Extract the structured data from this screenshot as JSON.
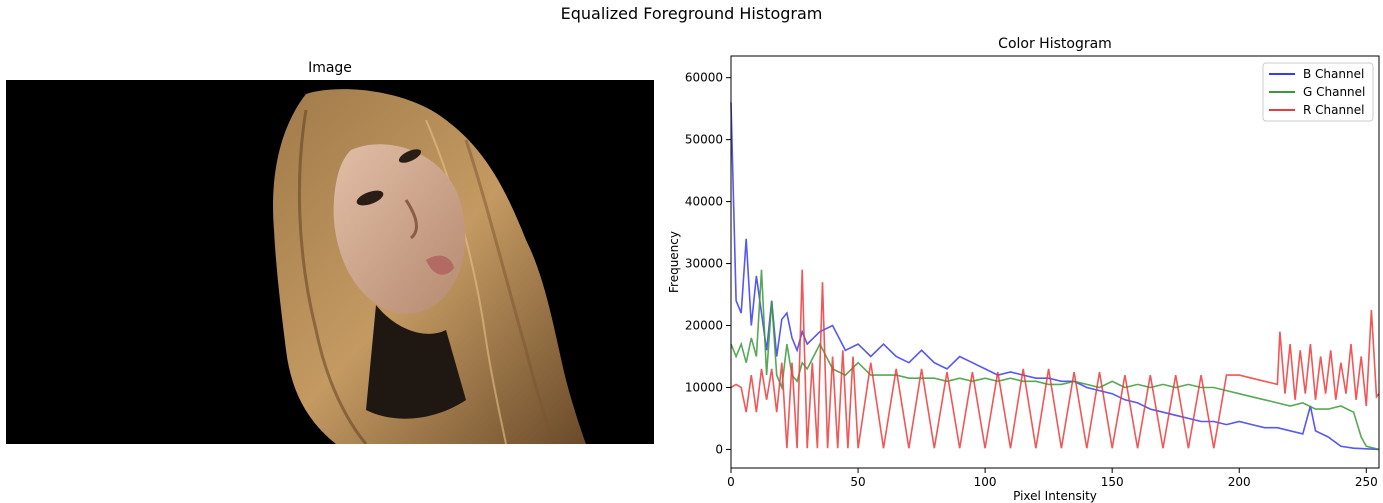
{
  "figure": {
    "suptitle": "Equalized Foreground Histogram"
  },
  "image_panel": {
    "title": "Image",
    "description_icon": "portrait-photo"
  },
  "chart_data": {
    "type": "line",
    "title": "Color Histogram",
    "xlabel": "Pixel Intensity",
    "ylabel": "Frequency",
    "xlim": [
      0,
      255
    ],
    "ylim": [
      -3000,
      63500
    ],
    "xticks": [
      0,
      50,
      100,
      150,
      200,
      250
    ],
    "yticks": [
      0,
      10000,
      20000,
      30000,
      40000,
      50000,
      60000
    ],
    "legend_position": "top-right",
    "grid": false,
    "series": [
      {
        "name": "B Channel",
        "color": "#3a3aee",
        "x": [
          0,
          2,
          4,
          6,
          8,
          10,
          12,
          14,
          16,
          18,
          20,
          22,
          24,
          26,
          28,
          30,
          35,
          40,
          45,
          50,
          55,
          60,
          65,
          70,
          75,
          80,
          85,
          90,
          95,
          100,
          105,
          110,
          115,
          120,
          125,
          130,
          135,
          140,
          145,
          150,
          155,
          160,
          165,
          170,
          175,
          180,
          185,
          190,
          195,
          200,
          205,
          210,
          215,
          220,
          225,
          228,
          230,
          235,
          240,
          245,
          250,
          255
        ],
        "y": [
          56000,
          24000,
          22000,
          34000,
          20000,
          28000,
          22000,
          16000,
          24000,
          15000,
          21000,
          22000,
          18000,
          16000,
          19000,
          17000,
          19000,
          20000,
          16000,
          17000,
          15000,
          17000,
          15000,
          14000,
          16000,
          14000,
          13000,
          15000,
          14000,
          13000,
          12000,
          12500,
          12000,
          11500,
          11500,
          11000,
          11000,
          10000,
          9500,
          9000,
          8000,
          7500,
          6500,
          6000,
          5500,
          5000,
          4500,
          4500,
          4000,
          4500,
          4000,
          3500,
          3500,
          3000,
          2500,
          7000,
          3000,
          2000,
          500,
          200,
          100,
          0
        ]
      },
      {
        "name": "G Channel",
        "color": "#3a9a3a",
        "x": [
          0,
          2,
          4,
          6,
          8,
          10,
          12,
          14,
          16,
          18,
          20,
          22,
          24,
          26,
          28,
          30,
          35,
          40,
          45,
          50,
          55,
          60,
          65,
          70,
          75,
          80,
          85,
          90,
          95,
          100,
          105,
          110,
          115,
          120,
          125,
          130,
          135,
          140,
          145,
          150,
          155,
          160,
          165,
          170,
          175,
          180,
          185,
          190,
          195,
          200,
          205,
          210,
          215,
          220,
          225,
          230,
          235,
          240,
          245,
          248,
          250,
          255
        ],
        "y": [
          17000,
          15000,
          17000,
          14000,
          18000,
          15000,
          29000,
          12000,
          24000,
          12000,
          10000,
          17000,
          12000,
          11000,
          14000,
          13000,
          17000,
          13000,
          12000,
          14000,
          12000,
          12000,
          12000,
          11500,
          11500,
          11500,
          11000,
          11500,
          11000,
          11500,
          11000,
          11500,
          11000,
          11000,
          10500,
          10500,
          11000,
          10500,
          10000,
          11000,
          10000,
          10500,
          10000,
          10500,
          10000,
          10500,
          10000,
          10000,
          9500,
          9000,
          8500,
          8000,
          7500,
          7000,
          7500,
          6500,
          6500,
          7000,
          6000,
          2000,
          500,
          0
        ]
      },
      {
        "name": "R Channel",
        "color": "#ee3a3a",
        "x": [
          0,
          2,
          4,
          6,
          8,
          10,
          12,
          14,
          16,
          18,
          20,
          22,
          24,
          26,
          28,
          30,
          32,
          34,
          36,
          38,
          40,
          42,
          44,
          46,
          48,
          50,
          55,
          60,
          65,
          70,
          75,
          80,
          85,
          90,
          95,
          100,
          105,
          110,
          115,
          120,
          125,
          130,
          135,
          140,
          145,
          150,
          155,
          160,
          165,
          170,
          175,
          180,
          185,
          190,
          195,
          200,
          205,
          210,
          215,
          216,
          218,
          220,
          222,
          224,
          226,
          228,
          230,
          232,
          234,
          236,
          238,
          240,
          242,
          244,
          246,
          248,
          250,
          252,
          254,
          255
        ],
        "y": [
          10000,
          10500,
          10000,
          6000,
          12000,
          6000,
          13000,
          8000,
          13000,
          6000,
          14000,
          200,
          14000,
          200,
          29000,
          200,
          14000,
          200,
          27000,
          200,
          15000,
          200,
          16000,
          200,
          15000,
          200,
          14000,
          200,
          13000,
          200,
          13000,
          200,
          12500,
          200,
          12500,
          200,
          12500,
          200,
          13000,
          200,
          13000,
          200,
          12500,
          200,
          12500,
          200,
          12000,
          200,
          12000,
          200,
          12000,
          200,
          12000,
          200,
          12000,
          12000,
          11500,
          11000,
          10500,
          19000,
          9000,
          17000,
          8000,
          16000,
          9000,
          17000,
          8000,
          15000,
          9000,
          16000,
          8000,
          14000,
          9000,
          17000,
          8000,
          15000,
          7000,
          22500,
          8500,
          9000
        ]
      }
    ]
  }
}
